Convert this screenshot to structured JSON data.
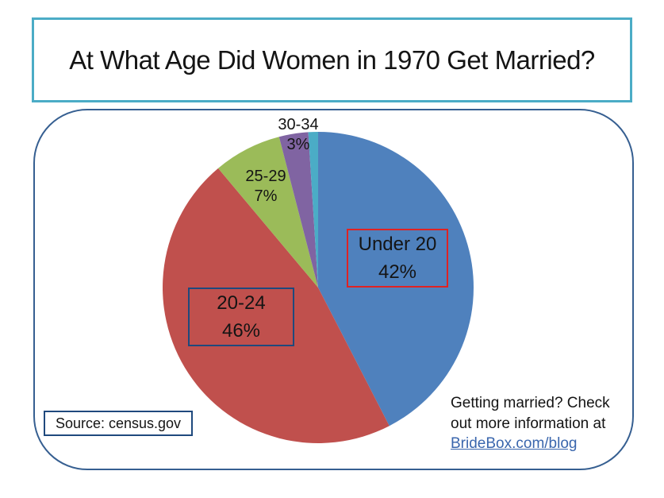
{
  "chart_data": {
    "type": "pie",
    "title": "At What Age Did Women in 1970 Get Married?",
    "start_angle_deg": 0,
    "direction": "clockwise",
    "legend_position": "none",
    "slices": [
      {
        "label": "Under 20",
        "pct_label": "42%",
        "value": 42,
        "color": "#4f81bd",
        "label_style": "boxed-red"
      },
      {
        "label": "20-24",
        "pct_label": "46%",
        "value": 46,
        "color": "#c0504d",
        "label_style": "boxed-navy"
      },
      {
        "label": "25-29",
        "pct_label": "7%",
        "value": 7,
        "color": "#9bbb59",
        "label_style": "plain"
      },
      {
        "label": "30-34",
        "pct_label": "3%",
        "value": 3,
        "color": "#8064a2",
        "label_style": "plain"
      },
      {
        "label": "",
        "pct_label": "",
        "value": 1,
        "color": "#4bacc6",
        "label_style": "none"
      }
    ]
  },
  "annotations": {
    "source_label": "Source: census.gov",
    "promo_line1": "Getting married? Check",
    "promo_line2": "out more information at",
    "promo_link": "BrideBox.com/blog"
  },
  "colors": {
    "title_border": "#4bacc6",
    "chart_border": "#365f91",
    "box_border_blue": "#1f497d",
    "box_border_red": "#e02222",
    "link": "#3a66ad",
    "background": "#ffffff"
  }
}
